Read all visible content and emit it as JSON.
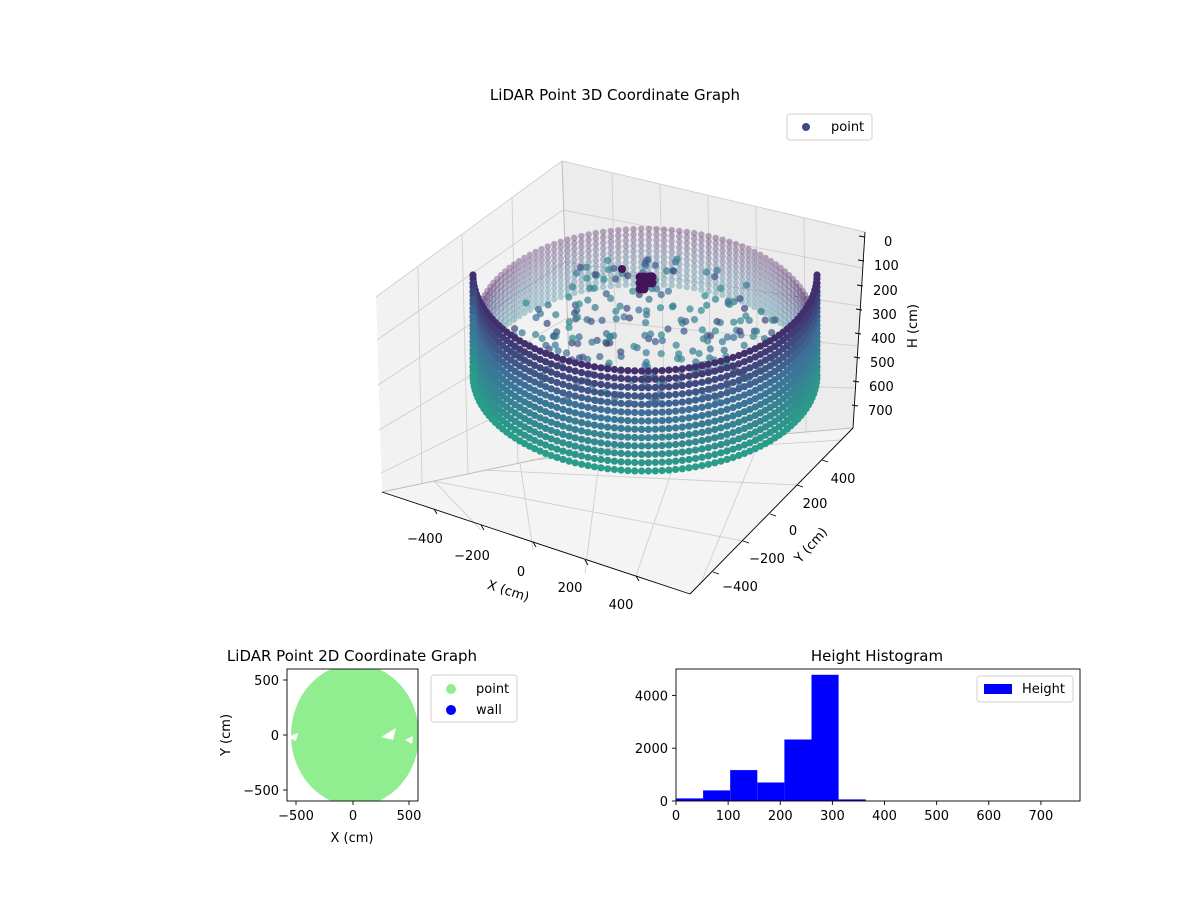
{
  "colors": {
    "wall_2d": "#90ee90",
    "wall_2d_legend": "#0000ff",
    "hist_bar": "#0000ff",
    "legend_3d_marker": "#3b4b8e",
    "viridis_low": "#2a9d8a",
    "viridis_mid": "#3d6f99",
    "viridis_high": "#44135a"
  },
  "chart_data": [
    {
      "type": "scatter",
      "projection": "3d",
      "title": "LiDAR Point 3D Coordinate Graph",
      "xlabel": "X (cm)",
      "ylabel": "Y (cm)",
      "zlabel": "H (cm)",
      "x_ticks": [
        "−400",
        "−200",
        "0",
        "200",
        "400"
      ],
      "y_ticks": [
        "−400",
        "−200",
        "0",
        "200",
        "400"
      ],
      "z_ticks": [
        "0",
        "100",
        "200",
        "300",
        "400",
        "500",
        "600",
        "700"
      ],
      "xlim": [
        -600,
        600
      ],
      "ylim": [
        -600,
        600
      ],
      "zlim": [
        780,
        0
      ],
      "z_inverted": true,
      "legend": {
        "entries": [
          "point"
        ],
        "placement": "upper right"
      },
      "wall_radius": 560,
      "wall_height_range": [
        0,
        300
      ],
      "colormap": "viridis (by height)",
      "grid": true
    },
    {
      "type": "scatter",
      "title": "LiDAR Point 2D Coordinate Graph",
      "xlabel": "X (cm)",
      "ylabel": "Y (cm)",
      "x_ticks": [
        "−500",
        "0",
        "500"
      ],
      "y_ticks": [
        "−500",
        "0",
        "500"
      ],
      "xlim": [
        -580,
        580
      ],
      "ylim": [
        -580,
        580
      ],
      "legend": {
        "entries": [
          "point",
          "wall"
        ],
        "placement": "outside right"
      },
      "point_region": "filled disk of radius ~560 cm centred at (0,0)",
      "grid": false
    },
    {
      "type": "bar",
      "title": "Height Histogram",
      "xlabel": "",
      "ylabel": "",
      "x_ticks": [
        "0",
        "100",
        "200",
        "300",
        "400",
        "500",
        "600",
        "700"
      ],
      "y_ticks": [
        "0",
        "2000",
        "4000"
      ],
      "xlim": [
        0,
        775
      ],
      "ylim": [
        0,
        5000
      ],
      "bin_edges": [
        0,
        52,
        104,
        156,
        208,
        260,
        312,
        364
      ],
      "values": [
        100,
        400,
        1170,
        700,
        2330,
        4780,
        60
      ],
      "legend": {
        "entries": [
          "Height"
        ],
        "placement": "upper right"
      },
      "grid": false
    }
  ]
}
